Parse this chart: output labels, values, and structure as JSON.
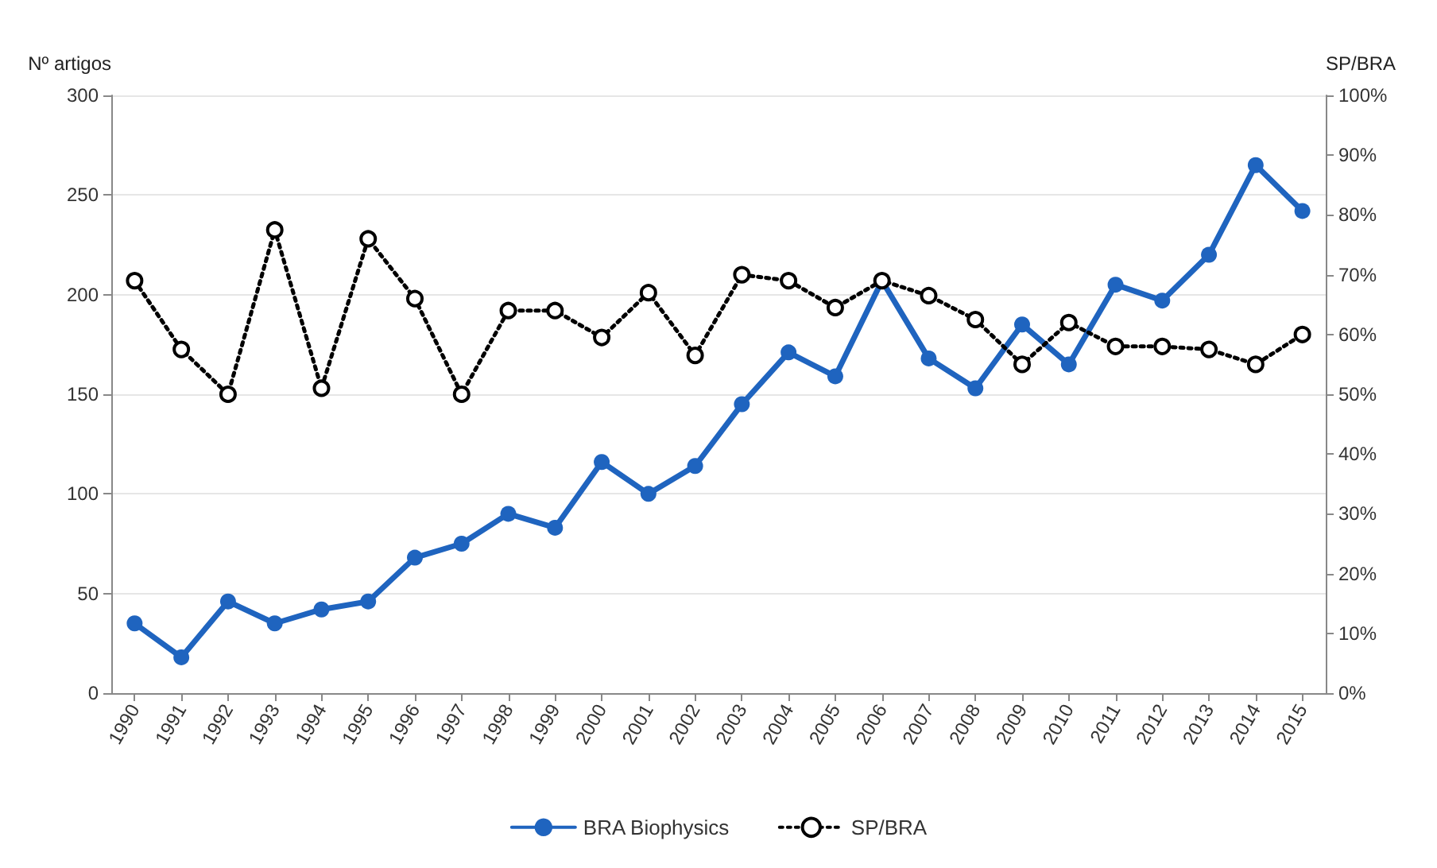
{
  "chart_data": {
    "type": "line",
    "ylabel": "Nº artigos",
    "y2label": "SP/BRA",
    "categories": [
      "1990",
      "1991",
      "1992",
      "1993",
      "1994",
      "1995",
      "1996",
      "1997",
      "1998",
      "1999",
      "2000",
      "2001",
      "2002",
      "2003",
      "2004",
      "2005",
      "2006",
      "2007",
      "2008",
      "2009",
      "2010",
      "2011",
      "2012",
      "2013",
      "2014",
      "2015"
    ],
    "series": [
      {
        "name": "BRA Biophysics",
        "color": "#1f64bf",
        "marker": "circle",
        "line_style": "solid",
        "values": [
          35,
          18,
          46,
          35,
          42,
          46,
          68,
          75,
          90,
          83,
          116,
          100,
          114,
          145,
          171,
          159,
          207,
          168,
          153,
          185,
          165,
          205,
          197,
          220,
          265,
          242
        ]
      },
      {
        "name": "SP/BRA",
        "color": "#000000",
        "marker": "circle",
        "line_style": "dotted",
        "axis": "y2",
        "values": [
          69,
          57.5,
          50,
          77.5,
          51,
          76,
          66,
          50,
          64,
          64,
          59.5,
          67,
          56.5,
          70,
          69,
          64.5,
          69,
          66.5,
          62.5,
          55,
          62,
          58,
          58,
          57.5,
          55,
          60
        ]
      }
    ],
    "ylim": [
      0,
      300
    ],
    "yticks": [
      0,
      50,
      100,
      150,
      200,
      250,
      300
    ],
    "y2lim": [
      0,
      100
    ],
    "y2ticks": [
      {
        "value": 0,
        "label": "0%"
      },
      {
        "value": 10,
        "label": "10%"
      },
      {
        "value": 20,
        "label": "20%"
      },
      {
        "value": 30,
        "label": "30%"
      },
      {
        "value": 40,
        "label": "40%"
      },
      {
        "value": 50,
        "label": "50%"
      },
      {
        "value": 60,
        "label": "60%"
      },
      {
        "value": 70,
        "label": "70%"
      },
      {
        "value": 80,
        "label": "80%"
      },
      {
        "value": 90,
        "label": "90%"
      },
      {
        "value": 100,
        "label": "100%"
      }
    ],
    "grid": "y",
    "legend": "bottom"
  }
}
